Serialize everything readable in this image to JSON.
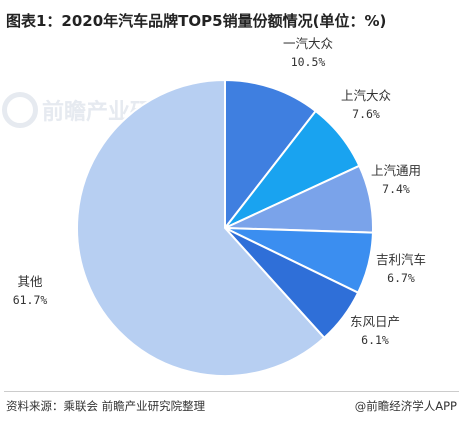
{
  "title": "图表1：2020年汽车品牌TOP5销量份额情况(单位：%)",
  "watermark": "前瞻产业研究院",
  "chart_data": {
    "type": "pie",
    "title": "图表1：2020年汽车品牌TOP5销量份额情况(单位：%)",
    "unit": "%",
    "slices": [
      {
        "label": "一汽大众",
        "value": 10.5,
        "display": "10.5%",
        "color": "#3f7fe0"
      },
      {
        "label": "上汽大众",
        "value": 7.6,
        "display": "7.6%",
        "color": "#19a3f0"
      },
      {
        "label": "上汽通用",
        "value": 7.4,
        "display": "7.4%",
        "color": "#7aa3ea"
      },
      {
        "label": "吉利汽车",
        "value": 6.7,
        "display": "6.7%",
        "color": "#3b8ef0"
      },
      {
        "label": "东风日产",
        "value": 6.1,
        "display": "6.1%",
        "color": "#2f6fd8"
      },
      {
        "label": "其他",
        "value": 61.7,
        "display": "61.7%",
        "color": "#b7cff2"
      }
    ]
  },
  "footer": {
    "source": "资料来源：乘联会 前瞻产业研究院整理",
    "brand": "@前瞻经济学人APP"
  }
}
